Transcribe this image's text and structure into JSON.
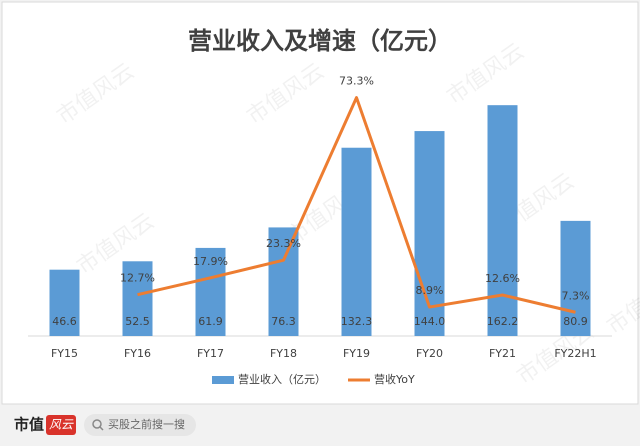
{
  "chart_data": {
    "type": "bar-line",
    "title": "营业收入及增速（亿元）",
    "categories": [
      "FY15",
      "FY16",
      "FY17",
      "FY18",
      "FY19",
      "FY20",
      "FY21",
      "FY22H1"
    ],
    "series": [
      {
        "name": "营业收入（亿元）",
        "color": "#5b9bd5",
        "type": "bar",
        "values": [
          46.6,
          52.5,
          61.9,
          76.3,
          132.3,
          144.0,
          162.2,
          80.9
        ],
        "value_labels": [
          "46.6",
          "52.5",
          "61.9",
          "76.3",
          "132.3",
          "144.0",
          "162.2",
          "80.9"
        ]
      },
      {
        "name": "营收YoY",
        "color": "#ed7d31",
        "type": "line",
        "axis": "y2",
        "values": [
          null,
          12.7,
          17.9,
          23.3,
          73.3,
          8.9,
          12.6,
          7.3
        ],
        "value_labels": [
          null,
          "12.7%",
          "17.9%",
          "23.3%",
          "73.3%",
          "8.9%",
          "12.6%",
          "7.3%"
        ]
      }
    ],
    "ylim": [
      0,
      208
    ],
    "y2lim": [
      0,
      91
    ],
    "legend": "bottom"
  },
  "watermark": "市值风云",
  "footer": {
    "brand": "市值",
    "stamp": "风云",
    "search": "买股之前搜一搜"
  }
}
